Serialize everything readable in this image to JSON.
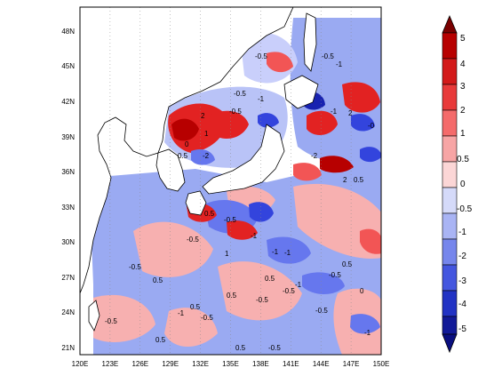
{
  "map": {
    "lon_ticks": [
      "120E",
      "123E",
      "126E",
      "129E",
      "132E",
      "135E",
      "138E",
      "141E",
      "144E",
      "147E",
      "150E"
    ],
    "lat_ticks": [
      "48N",
      "45N",
      "42N",
      "39N",
      "36N",
      "33N",
      "30N",
      "27N",
      "24N",
      "21N"
    ],
    "contour_labels": [
      {
        "id": "c1",
        "text": "-0.5"
      },
      {
        "id": "c2",
        "text": "-0.5"
      },
      {
        "id": "c3",
        "text": "-1"
      },
      {
        "id": "c4",
        "text": "-0.5"
      },
      {
        "id": "c5",
        "text": "2"
      },
      {
        "id": "c6",
        "text": "-0.5"
      },
      {
        "id": "c7",
        "text": "-1"
      },
      {
        "id": "c8",
        "text": "-1"
      },
      {
        "id": "c9",
        "text": "1"
      },
      {
        "id": "c10",
        "text": "0"
      },
      {
        "id": "c11",
        "text": "-2"
      },
      {
        "id": "c12",
        "text": "0.5"
      },
      {
        "id": "c13",
        "text": "2"
      },
      {
        "id": "c14",
        "text": "-0"
      },
      {
        "id": "c15",
        "text": "-2"
      },
      {
        "id": "c16",
        "text": "2"
      },
      {
        "id": "c17",
        "text": "0.5"
      },
      {
        "id": "c18",
        "text": "-0.5"
      },
      {
        "id": "c19",
        "text": "0.5"
      },
      {
        "id": "c20",
        "text": "-1"
      },
      {
        "id": "c21",
        "text": "1"
      },
      {
        "id": "c22",
        "text": "-0.5"
      },
      {
        "id": "c23",
        "text": "-0.5"
      },
      {
        "id": "c24",
        "text": "0.5"
      },
      {
        "id": "c25",
        "text": "-1"
      },
      {
        "id": "c26",
        "text": "0.5"
      },
      {
        "id": "c27",
        "text": "-0.5"
      },
      {
        "id": "c28",
        "text": "0.5"
      },
      {
        "id": "c29",
        "text": "-1"
      },
      {
        "id": "c30",
        "text": "-0.5"
      },
      {
        "id": "c31",
        "text": "0.5"
      },
      {
        "id": "c32",
        "text": "-0.5"
      },
      {
        "id": "c33",
        "text": "0"
      },
      {
        "id": "c34",
        "text": "-0.5"
      },
      {
        "id": "c35",
        "text": "-1"
      },
      {
        "id": "c36",
        "text": "0.5"
      },
      {
        "id": "c37",
        "text": "-0.5"
      },
      {
        "id": "c38",
        "text": "-1"
      },
      {
        "id": "c39",
        "text": "0.5"
      },
      {
        "id": "c40",
        "text": "-0.5"
      },
      {
        "id": "c41",
        "text": "0.5"
      },
      {
        "id": "c42",
        "text": "-0.5"
      },
      {
        "id": "c43",
        "text": "-1"
      }
    ]
  },
  "colorbar": {
    "labels": [
      "5",
      "4",
      "3",
      "2",
      "1",
      "0.5",
      "0",
      "-0.5",
      "-1",
      "-2",
      "-3",
      "-4",
      "-5"
    ],
    "colors": [
      "#7a0000",
      "#b70000",
      "#e22222",
      "#f25555",
      "#f79a9a",
      "#fbd1d1",
      "#ffffff",
      "#c9cffb",
      "#9aa8f7",
      "#6677ee",
      "#3344dd",
      "#1822b0",
      "#0a0f80"
    ]
  }
}
